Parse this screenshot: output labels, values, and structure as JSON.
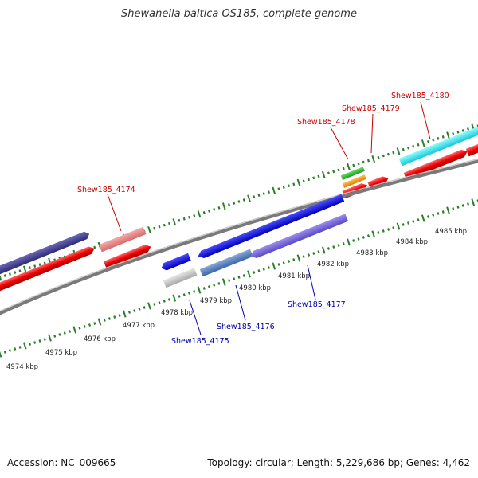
{
  "title": "Shewanella baltica OS185, complete genome",
  "footer": {
    "accession": "Accession: NC_009665",
    "summary": "Topology: circular; Length: 5,229,686 bp; Genes: 4,462"
  },
  "colors": {
    "forward_label": "#cc0000",
    "reverse_label": "#0000aa",
    "backbone": "#8c8c8c",
    "tick": "#2e7d2e"
  },
  "scale_labels": [
    "4974 kbp",
    "4975 kbp",
    "4976 kbp",
    "4977 kbp",
    "4978 kbp",
    "4979 kbp",
    "4980 kbp",
    "4981 kbp",
    "4982 kbp",
    "4983 kbp",
    "4984 kbp",
    "4985 kbp"
  ],
  "gene_labels": {
    "forward": [
      "Shew185_4174",
      "Shew185_4178",
      "Shew185_4179",
      "Shew185_4180"
    ],
    "reverse": [
      "Shew185_4175",
      "Shew185_4176",
      "Shew185_4177"
    ]
  }
}
